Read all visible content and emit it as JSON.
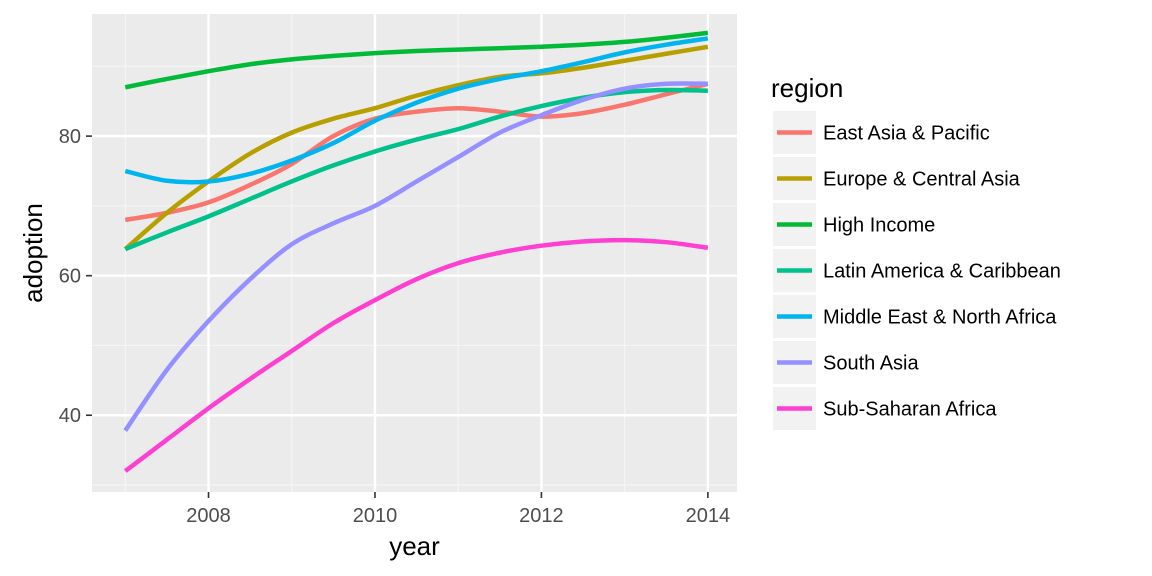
{
  "chart_data": {
    "type": "line",
    "xlabel": "year",
    "ylabel": "adoption",
    "xlim": [
      2006.6,
      2014.35
    ],
    "ylim": [
      29,
      97.5
    ],
    "x_ticks": [
      2008,
      2010,
      2012,
      2014
    ],
    "y_ticks": [
      40,
      60,
      80
    ],
    "grid": true,
    "legend": {
      "title": "region",
      "position": "right"
    },
    "series": [
      {
        "name": "East Asia & Pacific",
        "color": "#F8766D",
        "x": [
          2007,
          2007.5,
          2008,
          2008.5,
          2009,
          2009.5,
          2010,
          2010.5,
          2011,
          2011.5,
          2012,
          2012.5,
          2013,
          2013.5,
          2014
        ],
        "values": [
          68,
          69,
          70.5,
          73,
          76,
          80,
          82.5,
          83.5,
          84,
          83.5,
          82.8,
          83.3,
          84.5,
          86,
          87.5
        ]
      },
      {
        "name": "Europe & Central Asia",
        "color": "#B79F00",
        "x": [
          2007,
          2007.5,
          2008,
          2008.5,
          2009,
          2009.5,
          2010,
          2010.5,
          2011,
          2011.5,
          2012,
          2012.5,
          2013,
          2013.5,
          2014
        ],
        "values": [
          63.8,
          69,
          73.5,
          77.5,
          80.5,
          82.5,
          84,
          85.8,
          87.3,
          88.5,
          89,
          89.8,
          90.8,
          91.8,
          92.8
        ]
      },
      {
        "name": "High Income",
        "color": "#00BA38",
        "x": [
          2007,
          2007.5,
          2008,
          2008.5,
          2009,
          2009.5,
          2010,
          2010.5,
          2011,
          2011.5,
          2012,
          2012.5,
          2013,
          2013.5,
          2014
        ],
        "values": [
          87,
          88.2,
          89.3,
          90.3,
          91,
          91.5,
          91.9,
          92.2,
          92.4,
          92.6,
          92.8,
          93.1,
          93.5,
          94.1,
          94.8
        ]
      },
      {
        "name": "Latin America & Caribbean",
        "color": "#00C08B",
        "x": [
          2007,
          2007.5,
          2008,
          2008.5,
          2009,
          2009.5,
          2010,
          2010.5,
          2011,
          2011.5,
          2012,
          2012.5,
          2013,
          2013.5,
          2014
        ],
        "values": [
          63.8,
          66.2,
          68.5,
          71,
          73.5,
          75.8,
          77.8,
          79.5,
          81,
          82.8,
          84.3,
          85.5,
          86.3,
          86.6,
          86.5
        ]
      },
      {
        "name": "Middle East & North Africa",
        "color": "#00B4EF",
        "x": [
          2007,
          2007.5,
          2008,
          2008.5,
          2009,
          2009.5,
          2010,
          2010.5,
          2011,
          2011.5,
          2012,
          2012.5,
          2013,
          2013.5,
          2014
        ],
        "values": [
          75,
          73.6,
          73.5,
          74.6,
          76.5,
          79,
          82.2,
          84.8,
          86.8,
          88.2,
          89.3,
          90.6,
          92,
          93.1,
          94
        ]
      },
      {
        "name": "South Asia",
        "color": "#9590FF",
        "x": [
          2007,
          2007.5,
          2008,
          2008.5,
          2009,
          2009.5,
          2010,
          2010.5,
          2011,
          2011.5,
          2012,
          2012.5,
          2013,
          2013.5,
          2014
        ],
        "values": [
          37.8,
          46.5,
          53.5,
          59.5,
          64.5,
          67.5,
          70,
          73.5,
          77,
          80.5,
          83,
          85.2,
          86.8,
          87.5,
          87.5
        ]
      },
      {
        "name": "Sub-Saharan Africa",
        "color": "#FF3FD0",
        "x": [
          2007,
          2007.5,
          2008,
          2008.5,
          2009,
          2009.5,
          2010,
          2010.5,
          2011,
          2011.5,
          2012,
          2012.5,
          2013,
          2013.5,
          2014
        ],
        "values": [
          32,
          36.5,
          41,
          45.2,
          49.2,
          53.2,
          56.5,
          59.5,
          61.8,
          63.3,
          64.3,
          64.9,
          65.1,
          64.8,
          64
        ]
      }
    ]
  }
}
